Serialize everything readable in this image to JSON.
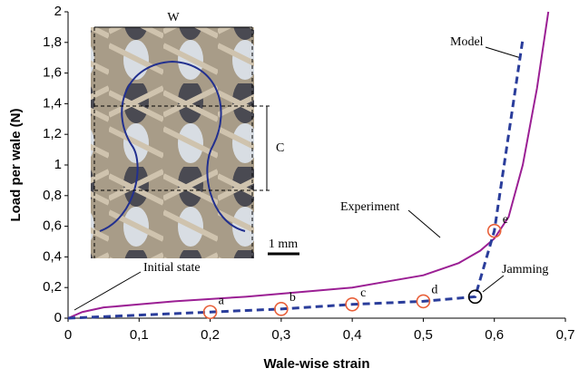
{
  "chart_data": {
    "type": "line",
    "x_label": "Wale-wise strain",
    "y_label": "Load per wale (N)",
    "xlim": [
      0,
      0.7
    ],
    "ylim": [
      0,
      2
    ],
    "xticks": [
      0,
      {
        "value": 0.1,
        "label": "0,1"
      },
      {
        "value": 0.2,
        "label": "0,2"
      },
      {
        "value": 0.3,
        "label": "0,3"
      },
      {
        "value": 0.4,
        "label": "0,4"
      },
      {
        "value": 0.5,
        "label": "0,5"
      },
      {
        "value": 0.6,
        "label": "0,6"
      },
      {
        "value": 0.7,
        "label": "0,7"
      }
    ],
    "yticks": [
      0,
      {
        "value": 0.2,
        "label": "0,2"
      },
      {
        "value": 0.4,
        "label": "0,4"
      },
      {
        "value": 0.6,
        "label": "0,6"
      },
      {
        "value": 0.8,
        "label": "0,8"
      },
      1,
      {
        "value": 1.2,
        "label": "1,2"
      },
      {
        "value": 1.4,
        "label": "1,4"
      },
      {
        "value": 1.6,
        "label": "1,6"
      },
      {
        "value": 1.8,
        "label": "1,8"
      },
      2
    ],
    "series": [
      {
        "name": "Experiment",
        "color": "#9b1f94",
        "x": [
          0,
          0.02,
          0.05,
          0.1,
          0.15,
          0.2,
          0.25,
          0.3,
          0.35,
          0.4,
          0.45,
          0.5,
          0.55,
          0.58,
          0.6,
          0.62,
          0.64,
          0.66,
          0.676
        ],
        "values": [
          0,
          0.04,
          0.07,
          0.09,
          0.11,
          0.125,
          0.14,
          0.16,
          0.18,
          0.2,
          0.24,
          0.28,
          0.36,
          0.44,
          0.52,
          0.66,
          1.0,
          1.5,
          2.0
        ]
      },
      {
        "name": "Model",
        "color": "#2a3d9b",
        "dashed": true,
        "x": [
          0,
          0.1,
          0.2,
          0.3,
          0.4,
          0.5,
          0.573,
          0.6,
          0.64
        ],
        "values": [
          0,
          0.02,
          0.04,
          0.06,
          0.09,
          0.11,
          0.14,
          0.57,
          1.82
        ]
      }
    ],
    "markers": {
      "color": "#e8603a",
      "x": [
        0.2,
        0.3,
        0.4,
        0.5,
        0.6
      ],
      "values": [
        0.04,
        0.06,
        0.09,
        0.11,
        0.57
      ],
      "labels": [
        "a",
        "b",
        "c",
        "d",
        "e"
      ]
    },
    "jamming": {
      "label": "Jamming",
      "x": 0.573,
      "value": 0.14
    },
    "initial_state": "Initial state",
    "inset": {
      "width_label": "W",
      "height_label": "C",
      "scale_label": "1 mm"
    }
  }
}
